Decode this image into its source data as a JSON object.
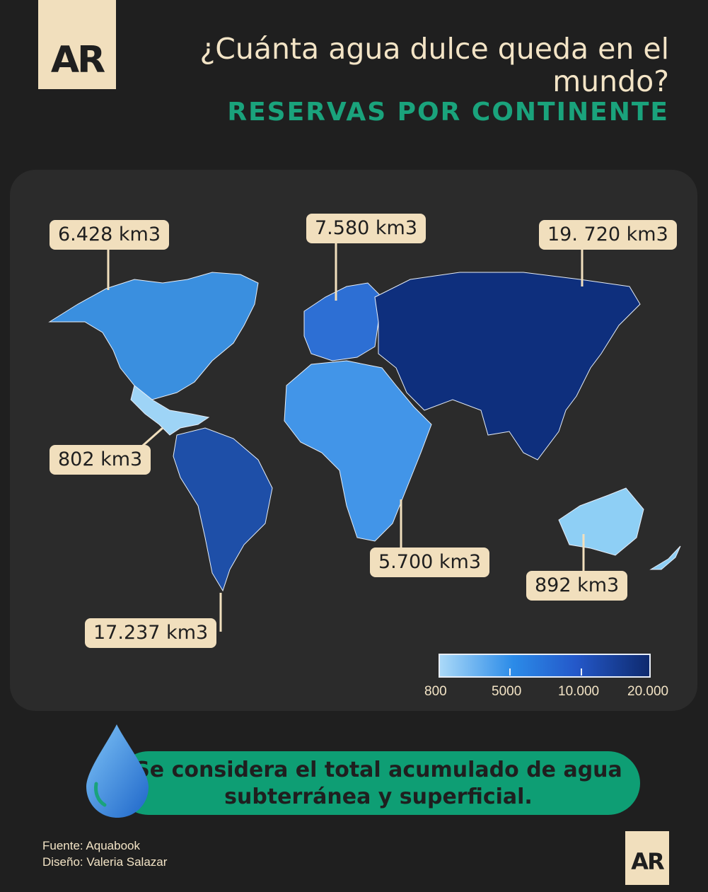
{
  "brand": {
    "logo_text": "AR",
    "logo_small_text": "AR"
  },
  "title": "¿Cuánta agua dulce queda en el mundo?",
  "subtitle": "RESERVAS POR CONTINENTE",
  "regions": [
    {
      "name": "North America",
      "value_label": "6.428 km3",
      "value": 6428,
      "color": "#3a8fdf"
    },
    {
      "name": "Europe",
      "value_label": "7.580 km3",
      "value": 7580,
      "color": "#2d6fd4"
    },
    {
      "name": "Asia",
      "value_label": "19. 720 km3",
      "value": 19720,
      "color": "#0e2f7d"
    },
    {
      "name": "Central America & Caribbean",
      "value_label": "802 km3",
      "value": 802,
      "color": "#9ed4f6"
    },
    {
      "name": "Africa",
      "value_label": "5.700 km3",
      "value": 5700,
      "color": "#4295e8"
    },
    {
      "name": "Oceania",
      "value_label": "892 km3",
      "value": 892,
      "color": "#8ecff5"
    },
    {
      "name": "South America",
      "value_label": "17.237 km3",
      "value": 17237,
      "color": "#1e4fa8"
    }
  ],
  "legend": {
    "ticks": [
      "800",
      "5000",
      "10.000",
      "20.000"
    ]
  },
  "note": "Se considera el total acumulado de agua subterránea y superficial.",
  "credits": {
    "source": "Fuente: Aquabook",
    "design": "Diseño: Valeria Salazar"
  }
}
